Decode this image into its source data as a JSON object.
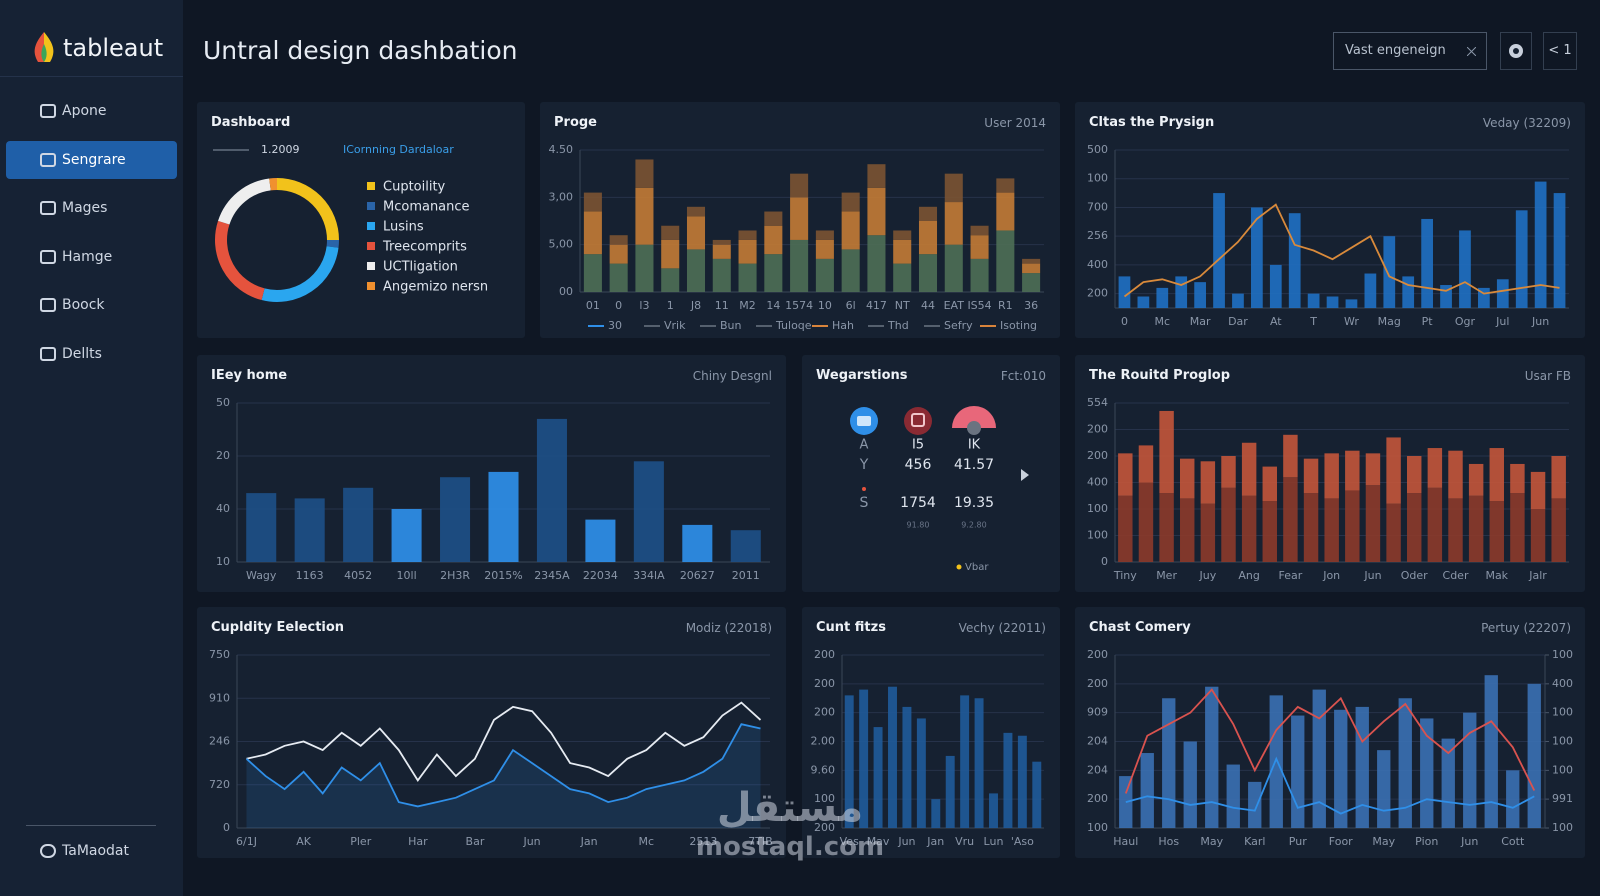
{
  "header": {
    "logo": "tableaut",
    "title": "Untral design dashbation",
    "search": "Vast engeneign",
    "nav": "< 1"
  },
  "sidebar": {
    "items": [
      "Apone",
      "Sengrare",
      "Mages",
      "Hamge",
      "Boock",
      "Dellts"
    ],
    "active": 1,
    "footer": "TaMaodat"
  },
  "widget": {
    "title": "Wegarstions",
    "subtitle": "Fct:010",
    "rows": [
      [
        "A",
        "I5",
        "IK"
      ],
      [
        "Y",
        "456",
        "41.57"
      ],
      [
        "S",
        "1754",
        "19.35"
      ]
    ],
    "notes": [
      "91.80",
      "9.2.80"
    ],
    "footer": "Vbar"
  },
  "watermark": [
    "مستقل",
    "mostaql.com"
  ],
  "chart_data": [
    {
      "type": "pie",
      "title": "Dashboard",
      "annotations": [
        "1.2009",
        "ICornning Dardaloar"
      ],
      "categories": [
        "Cuptoility",
        "Mcomanance",
        "Lusins",
        "Treecomprits",
        "UCTligation",
        "Angemizo nersn"
      ],
      "values": [
        25,
        2,
        27,
        26,
        18,
        2
      ],
      "colors": [
        "#f2c21b",
        "#2a64a8",
        "#2aa6ef",
        "#e5533d",
        "#eeeeee",
        "#f0902f"
      ]
    },
    {
      "type": "bar",
      "stacked": true,
      "title": "Proge",
      "subtitle": "User 2014",
      "categories": [
        "01",
        "0",
        "l3",
        "1",
        "J8",
        "11",
        "M2",
        "14",
        "1574",
        "10",
        "6l",
        "417",
        "NT",
        "44",
        "EAT",
        "IS54",
        "R1",
        "36"
      ],
      "series": [
        {
          "color": "#4d6e55",
          "values": [
            0.8,
            0.6,
            1.0,
            0.5,
            0.9,
            0.7,
            0.6,
            0.8,
            1.1,
            0.7,
            0.9,
            1.2,
            0.6,
            0.8,
            1.0,
            0.7,
            1.3,
            0.4
          ]
        },
        {
          "color": "#c07a35",
          "values": [
            0.9,
            0.4,
            1.2,
            0.6,
            0.7,
            0.3,
            0.5,
            0.6,
            0.9,
            0.4,
            0.8,
            1.0,
            0.5,
            0.7,
            0.9,
            0.5,
            0.8,
            0.2
          ]
        },
        {
          "color": "#7a5232",
          "values": [
            0.4,
            0.2,
            0.6,
            0.3,
            0.2,
            0.1,
            0.2,
            0.3,
            0.5,
            0.2,
            0.4,
            0.5,
            0.2,
            0.3,
            0.6,
            0.2,
            0.3,
            0.1
          ]
        }
      ],
      "ylim": [
        0,
        3
      ],
      "yticks": [
        {
          "value": 0,
          "label": "00"
        },
        {
          "value": 1,
          "label": "5,00"
        },
        {
          "value": 2,
          "label": "3,00"
        },
        {
          "value": 3,
          "label": "4.50"
        }
      ],
      "legend_labels": [
        "30",
        "Vrik",
        "Bun",
        "Tuloqe",
        "Hah",
        "Thd",
        "Sefry",
        "Isoting"
      ],
      "legend_colors": [
        "#2f8fe8",
        "#55606e",
        "#55606e",
        "#55606e",
        "#d9843b",
        "#55606e",
        "#55606e",
        "#d9843b"
      ],
      "grid": true
    },
    {
      "type": "combo",
      "title": "Cltas the Prysign",
      "subtitle": "Veday (32209)",
      "categories": [
        "0",
        null,
        "Mc",
        null,
        "Mar",
        null,
        "Dar",
        null,
        "At",
        null,
        "T",
        null,
        "Wr",
        null,
        "Mag",
        null,
        "Pt",
        null,
        "Ogr",
        null,
        "Jul",
        null,
        "Jun",
        null
      ],
      "series": [
        {
          "type": "bar",
          "color": "#1f6fc0",
          "values": [
            1.6,
            0.9,
            1.2,
            1.6,
            1.4,
            4.5,
            1.0,
            4.0,
            2.0,
            3.8,
            1.0,
            0.9,
            0.8,
            1.7,
            3.0,
            1.6,
            3.6,
            1.3,
            3.2,
            1.2,
            1.5,
            3.9,
            4.9,
            4.5
          ]
        },
        {
          "type": "line",
          "color": "#d98a3b",
          "values": [
            0.9,
            1.4,
            1.5,
            1.3,
            1.6,
            2.2,
            2.8,
            3.6,
            4.1,
            2.7,
            2.5,
            2.2,
            2.6,
            3.0,
            1.6,
            1.3,
            1.2,
            1.1,
            1.4,
            1.0,
            1.1,
            1.2,
            1.3,
            1.2
          ]
        }
      ],
      "ylim": [
        0.5,
        6
      ],
      "yticks": [
        {
          "value": 1,
          "label": "200"
        },
        {
          "value": 2,
          "label": "400"
        },
        {
          "value": 3,
          "label": "256"
        },
        {
          "value": 4,
          "label": "700"
        },
        {
          "value": 5,
          "label": "100"
        },
        {
          "value": 6,
          "label": "500"
        }
      ],
      "grid": true
    },
    {
      "type": "bar",
      "title": "IEey home",
      "subtitle": "Chiny Desgnl",
      "categories": [
        "Wagy",
        "1163",
        "4052",
        "10ll",
        "2H3R",
        "2015%",
        "2345A",
        "22034",
        "334lA",
        "20627",
        "2011"
      ],
      "series": [
        {
          "values": [
            1.3,
            1.2,
            1.4,
            1.0,
            1.6,
            1.7,
            2.7,
            0.8,
            1.9,
            0.7,
            0.6
          ],
          "colors": [
            "#1d4f86",
            "#1d4f86",
            "#1d4f86",
            "#2f8fe8",
            "#1d4f86",
            "#2f8fe8",
            "#1d4f86",
            "#2f8fe8",
            "#1d4f86",
            "#2f8fe8",
            "#1d4f86"
          ]
        }
      ],
      "ylim": [
        0,
        3
      ],
      "yticks": [
        {
          "value": 0,
          "label": "10"
        },
        {
          "value": 1,
          "label": "40"
        },
        {
          "value": 2,
          "label": "20"
        },
        {
          "value": 3,
          "label": "50"
        }
      ],
      "grid": true
    },
    {
      "type": "bar",
      "stacked": true,
      "title": "The Rouitd Proglop",
      "subtitle": "Usar FB",
      "categories": [
        "Tiny",
        null,
        "Mer",
        null,
        "Juy",
        null,
        "Ang",
        null,
        "Fear",
        null,
        "Jon",
        null,
        "Jun",
        null,
        "Oder",
        null,
        "Cder",
        null,
        "Mak",
        null,
        "Jalr",
        null
      ],
      "series": [
        {
          "color": "#8a3a2a",
          "values": [
            2.5,
            3.0,
            2.6,
            2.4,
            2.2,
            2.8,
            2.5,
            2.3,
            3.2,
            2.6,
            2.4,
            2.7,
            2.9,
            2.2,
            2.6,
            2.8,
            2.4,
            2.5,
            2.3,
            2.6,
            2.0,
            2.4
          ]
        },
        {
          "color": "#c0553a",
          "values": [
            1.6,
            1.4,
            3.1,
            1.5,
            1.6,
            1.2,
            2.0,
            1.3,
            1.6,
            1.3,
            1.7,
            1.5,
            1.2,
            2.5,
            1.4,
            1.5,
            1.8,
            1.2,
            2.0,
            1.1,
            1.4,
            1.6
          ]
        }
      ],
      "ylim": [
        0,
        6
      ],
      "yticks": [
        0,
        {
          "value": 1,
          "label": "100"
        },
        {
          "value": 2,
          "label": "100"
        },
        {
          "value": 3,
          "label": "400"
        },
        {
          "value": 4,
          "label": "200"
        },
        {
          "value": 5,
          "label": "200"
        },
        {
          "value": 6,
          "label": "554"
        }
      ],
      "grid": true
    },
    {
      "type": "line",
      "title": "Cupldity Eelection",
      "subtitle": "Modiz (22018)",
      "categories": [
        "6/1J",
        null,
        null,
        "AK",
        null,
        null,
        "Pler",
        null,
        null,
        "Har",
        null,
        null,
        "Bar",
        null,
        null,
        "Jun",
        null,
        null,
        "Jan",
        null,
        null,
        "Mc",
        null,
        null,
        "2513",
        null,
        null,
        "7TIB"
      ],
      "series": [
        {
          "color": "#e6ebf2",
          "values": [
            1.6,
            1.7,
            1.9,
            2.0,
            1.8,
            2.2,
            1.9,
            2.3,
            1.8,
            1.1,
            1.7,
            1.2,
            1.6,
            2.5,
            2.8,
            2.7,
            2.2,
            1.5,
            1.4,
            1.2,
            1.6,
            1.8,
            2.2,
            1.9,
            2.1,
            2.6,
            2.9,
            2.5
          ]
        },
        {
          "color": "#2f8fe8",
          "area": true,
          "values": [
            1.6,
            1.2,
            0.9,
            1.3,
            0.8,
            1.4,
            1.1,
            1.5,
            0.6,
            0.5,
            0.6,
            0.7,
            0.9,
            1.1,
            1.8,
            1.5,
            1.2,
            0.9,
            0.8,
            0.6,
            0.7,
            0.9,
            1.0,
            1.1,
            1.3,
            1.6,
            2.4,
            2.3
          ]
        }
      ],
      "ylim": [
        0,
        4
      ],
      "yticks": [
        0,
        {
          "value": 1,
          "label": "720"
        },
        {
          "value": 2,
          "label": "246"
        },
        {
          "value": 3,
          "label": "910"
        },
        {
          "value": 4,
          "label": "750"
        }
      ],
      "grid": true
    },
    {
      "type": "bar",
      "title": "Cunt fitzs",
      "subtitle": "Vechy (22011)",
      "categories": [
        "Ves",
        null,
        "Mav",
        null,
        "Jun",
        null,
        "Jan",
        null,
        "Vru",
        null,
        "Lun",
        null,
        "'Aso",
        null
      ],
      "series": [
        {
          "color": "#1f5a98",
          "values": [
            4.6,
            4.8,
            3.5,
            4.9,
            4.2,
            3.8,
            1.0,
            2.5,
            4.6,
            4.5,
            1.2,
            3.3,
            3.2,
            2.3
          ]
        }
      ],
      "ylim": [
        0,
        6
      ],
      "yticks": [
        {
          "value": 0,
          "label": "200"
        },
        {
          "value": 1,
          "label": "100"
        },
        {
          "value": 2,
          "label": "9.60"
        },
        {
          "value": 3,
          "label": "2.00"
        },
        {
          "value": 4,
          "label": "200"
        },
        {
          "value": 5,
          "label": "200"
        },
        {
          "value": 6,
          "label": "200"
        }
      ],
      "grid": true
    },
    {
      "type": "combo",
      "title": "Chast Comery",
      "subtitle": "Pertuy (22207)",
      "categories": [
        "Haul",
        null,
        "Hos",
        null,
        "May",
        null,
        "Karl",
        null,
        "Pur",
        null,
        "Foor",
        null,
        "May",
        null,
        "Pion",
        null,
        "Jun",
        null,
        "Cott",
        null
      ],
      "series": [
        {
          "type": "bar",
          "color": "#3a6fb0",
          "values": [
            1.8,
            2.6,
            4.5,
            3.0,
            4.9,
            2.2,
            1.6,
            4.6,
            3.9,
            4.8,
            4.1,
            4.2,
            2.7,
            4.5,
            3.8,
            3.1,
            4.0,
            5.3,
            2.0,
            5.0
          ]
        },
        {
          "type": "line",
          "color": "#d9534f",
          "values": [
            1.2,
            3.2,
            3.6,
            4.0,
            4.8,
            3.6,
            2.0,
            3.4,
            4.2,
            3.8,
            4.5,
            3.0,
            3.7,
            4.3,
            3.2,
            2.6,
            3.3,
            3.7,
            2.8,
            1.3
          ]
        },
        {
          "type": "line",
          "axis": "y2",
          "color": "#2f8fe8",
          "values": [
            0.9,
            1.1,
            1.0,
            0.8,
            0.9,
            0.7,
            0.6,
            2.4,
            0.7,
            0.9,
            0.5,
            0.8,
            0.6,
            0.7,
            1.0,
            0.9,
            0.8,
            0.9,
            0.7,
            1.1
          ]
        }
      ],
      "ylim": [
        0,
        6
      ],
      "yticks": [
        {
          "value": 0,
          "label": "100"
        },
        {
          "value": 1,
          "label": "200"
        },
        {
          "value": 2,
          "label": "204"
        },
        {
          "value": 3,
          "label": "204"
        },
        {
          "value": 4,
          "label": "909"
        },
        {
          "value": 5,
          "label": "200"
        },
        {
          "value": 6,
          "label": "200"
        }
      ],
      "y2lim": [
        0,
        6
      ],
      "y2ticks": [
        {
          "value": 0,
          "label": "100"
        },
        {
          "value": 1,
          "label": "991"
        },
        {
          "value": 2,
          "label": "100"
        },
        {
          "value": 3,
          "label": "100"
        },
        {
          "value": 4,
          "label": "100"
        },
        {
          "value": 5,
          "label": "400"
        },
        {
          "value": 6,
          "label": "100"
        }
      ],
      "grid": true
    }
  ]
}
